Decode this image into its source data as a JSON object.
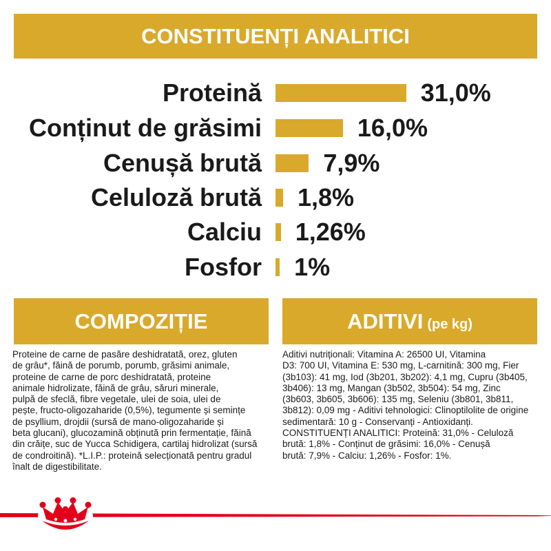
{
  "colors": {
    "gold": "#D9A92C",
    "red": "#E2001A",
    "text": "#1A1A1A",
    "banner_text": "#FFFFFF"
  },
  "chart_data": {
    "type": "bar",
    "orientation": "horizontal",
    "title": "CONSTITUENȚI ANALITICI",
    "categories": [
      "Proteină",
      "Conținut de grăsimi",
      "Cenușă brută",
      "Celuloză brută",
      "Calciu",
      "Fosfor"
    ],
    "values": [
      31.0,
      16.0,
      7.9,
      1.8,
      1.26,
      1
    ],
    "value_labels": [
      "31,0%",
      "16,0%",
      "7,9%",
      "1,8%",
      "1,26%",
      "1%"
    ],
    "grid": false
  },
  "composition": {
    "title": "COMPOZIȚIE",
    "lines": [
      "Proteine de carne de pasăre deshidratată, orez, gluten",
      "de grâu*, făină de porumb, porumb, grăsimi animale,",
      "proteine de carne de porc deshidratată, proteine",
      "animale hidrolizate, făină de grâu, săruri minerale,",
      "pulpă de sfeclă, fibre vegetale, ulei de soia, ulei de",
      "pește, fructo-oligozaharide (0,5%), tegumente și semințe",
      "de psyllium, drojdii (sursă de mano-oligozaharide și",
      "beta glucani), glucozamină obținută prin fermentație, făină",
      "din crăițe, suc de Yucca Schidigera, cartilaj hidrolizat (sursă",
      "de condroitină). *L.I.P.: proteină selecționată pentru gradul",
      "înalt de digestibilitate."
    ]
  },
  "additives": {
    "title": "ADITIVI",
    "title_suffix": "(pe kg)",
    "lines": [
      "Aditivi nutriționali: Vitamina A: 26500 UI, Vitamina",
      "D3: 700 UI, Vitamina E: 530 mg, L-carnitină: 300 mg, Fier",
      "(3b103): 41 mg, Iod (3b201, 3b202): 4,1 mg, Cupru (3b405,",
      "3b406): 13 mg, Mangan (3b502, 3b504): 54 mg, Zinc",
      "(3b603, 3b605, 3b606): 135 mg, Seleniu (3b801, 3b811,",
      "3b812): 0,09 mg - Aditivi tehnologici: Clinoptilolite de origine",
      "sedimentară: 10 g - Conservanți - Antioxidanți.",
      "CONSTITUENȚI ANALITICI: Proteină: 31,0% - Celuloză",
      "brută: 1,8% - Conținut de grăsimi: 16,0% - Cenușă",
      "brută: 7,9% - Calciu: 1,26% - Fosfor: 1%."
    ]
  },
  "footer": {
    "logo_icon": "royal-canin-crown-logo"
  }
}
